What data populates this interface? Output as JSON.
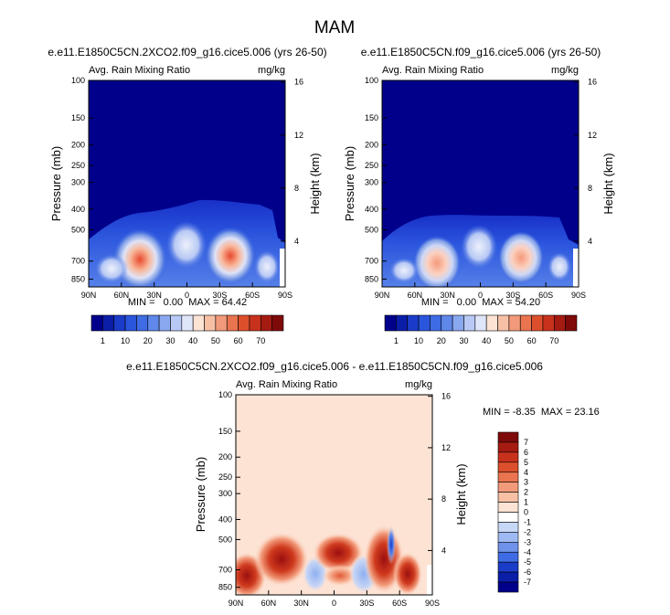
{
  "figure": {
    "season": "MAM",
    "colors": {
      "ocean_blue": "#00008b",
      "zero_diff": "#fde3d4"
    }
  },
  "chart_data": [
    {
      "type": "heatmap",
      "id": "panel1",
      "title": "e.e11.E1850C5CN.2XCO2.f09_g16.cice5.006 (yrs 26-50)",
      "subtitle_left": "Avg. Rain Mixing Ratio",
      "subtitle_right": "mg/kg",
      "ylabel": "Pressure (mb)",
      "ylabel_right": "Height (km)",
      "x_ticks": [
        "90N",
        "60N",
        "30N",
        "0",
        "30S",
        "60S",
        "90S"
      ],
      "y_ticks": [
        "100",
        "150",
        "200",
        "250",
        "300",
        "400",
        "500",
        "700",
        "850"
      ],
      "y_ticks_right": [
        "16",
        "12",
        "8",
        "4"
      ],
      "stats": "MIN =   0.00  MAX = 64.42",
      "min": 0.0,
      "max": 64.42,
      "colorbar_labels": [
        "1",
        "10",
        "20",
        "30",
        "40",
        "50",
        "60",
        "70"
      ]
    },
    {
      "type": "heatmap",
      "id": "panel2",
      "title": "e.e11.E1850C5CN.f09_g16.cice5.006 (yrs 26-50)",
      "subtitle_left": "Avg. Rain Mixing Ratio",
      "subtitle_right": "mg/kg",
      "ylabel": "Pressure (mb)",
      "ylabel_right": "Height (km)",
      "x_ticks": [
        "90N",
        "60N",
        "30N",
        "0",
        "30S",
        "60S",
        "90S"
      ],
      "y_ticks": [
        "100",
        "150",
        "200",
        "250",
        "300",
        "400",
        "500",
        "700",
        "850"
      ],
      "y_ticks_right": [
        "16",
        "12",
        "8",
        "4"
      ],
      "stats": "MIN =   0.00  MAX = 54.20",
      "min": 0.0,
      "max": 54.2,
      "colorbar_labels": [
        "1",
        "10",
        "20",
        "30",
        "40",
        "50",
        "60",
        "70"
      ]
    },
    {
      "type": "heatmap",
      "id": "panel3",
      "title": "e.e11.E1850C5CN.2XCO2.f09_g16.cice5.006 - e.e11.E1850C5CN.f09_g16.cice5.006",
      "subtitle_left": "Avg. Rain Mixing Ratio",
      "subtitle_right": "mg/kg",
      "ylabel": "Pressure (mb)",
      "ylabel_right": "Height (km)",
      "x_ticks": [
        "90N",
        "60N",
        "30N",
        "0",
        "30S",
        "60S",
        "90S"
      ],
      "y_ticks": [
        "100",
        "150",
        "200",
        "250",
        "300",
        "400",
        "500",
        "700",
        "850"
      ],
      "y_ticks_right": [
        "16",
        "12",
        "8",
        "4"
      ],
      "stats": "MIN = -8.35  MAX = 23.16",
      "min": -8.35,
      "max": 23.16,
      "colorbar_labels": [
        "7",
        "6",
        "5",
        "4",
        "3",
        "2",
        "1",
        "0",
        "-1",
        "-2",
        "-3",
        "-4",
        "-5",
        "-6",
        "-7"
      ]
    }
  ]
}
